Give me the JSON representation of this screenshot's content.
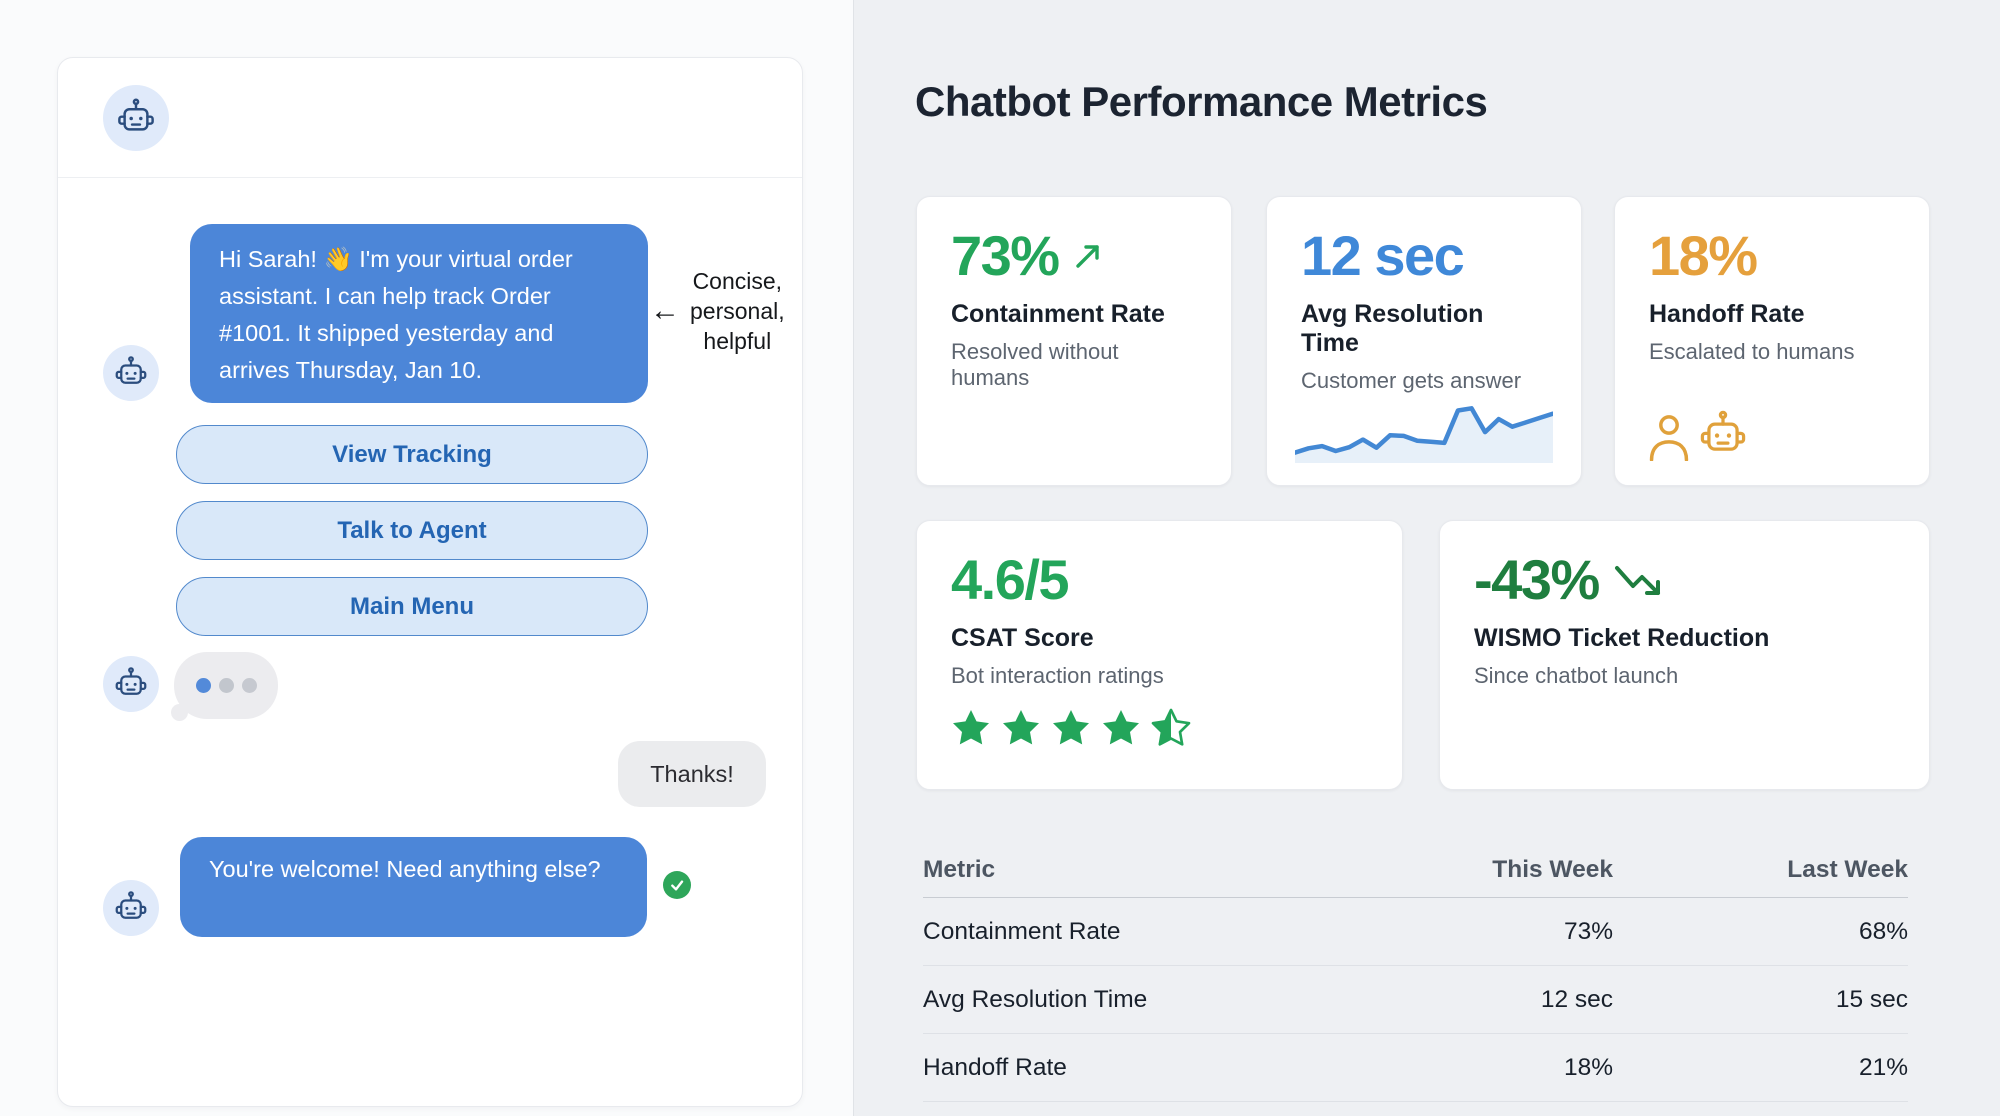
{
  "chat": {
    "messages": {
      "bot_intro": "Hi Sarah! 👋 I'm your virtual order assistant. I can help track Order #1001. It shipped yesterday and arrives Thursday, Jan 10.",
      "user_thanks": "Thanks!",
      "bot_closing": "You're welcome! Need anything else?"
    },
    "quick_replies": [
      "View Tracking",
      "Talk to Agent",
      "Main Menu"
    ],
    "annotation": {
      "arrow": "←",
      "line1": "Concise,",
      "line2": "personal,",
      "line3": "helpful"
    },
    "icons": {
      "bot_avatar": "robot-icon",
      "delivered_check": "check-icon",
      "typing_indicator": "three-dots"
    },
    "colors": {
      "bot_bubble": "#4c86d8",
      "user_bubble": "#ebecee",
      "quick_reply_bg": "#d9e8f9",
      "quick_reply_text": "#2465b3",
      "delivered_check": "#2ea65a"
    }
  },
  "dashboard": {
    "title": "Chatbot Performance Metrics",
    "cards": [
      {
        "value": "73%",
        "trend": "up",
        "label": "Containment Rate",
        "sub": "Resolved without humans",
        "accent": "#23a55a"
      },
      {
        "value": "12 sec",
        "label": "Avg Resolution Time",
        "sub": "Customer gets answer",
        "accent": "#3f88d8",
        "sparkline": [
          1.0,
          1.8,
          2.2,
          1.3,
          2.0,
          3.4,
          1.9,
          4.2,
          4.1,
          3.2,
          3.0,
          2.8,
          8.8,
          9.2,
          4.8,
          7.2,
          5.8,
          6.6,
          7.4,
          8.2
        ]
      },
      {
        "value": "18%",
        "label": "Handoff Rate",
        "sub": "Escalated to humans",
        "accent": "#e5a03c",
        "icons": [
          "person-icon",
          "robot-icon"
        ]
      },
      {
        "value": "4.6/5",
        "label": "CSAT Score",
        "sub": "Bot interaction ratings",
        "accent": "#23a55a",
        "stars": 4.5
      },
      {
        "value": "-43%",
        "trend": "down",
        "label": "WISMO Ticket Reduction",
        "sub": "Since chatbot launch",
        "accent": "#1f7e3f"
      }
    ],
    "table": {
      "headers": [
        "Metric",
        "This Week",
        "Last Week"
      ],
      "rows": [
        {
          "metric": "Containment Rate",
          "this_week": "73%",
          "last_week": "68%"
        },
        {
          "metric": "Avg Resolution Time",
          "this_week": "12 sec",
          "last_week": "15 sec"
        },
        {
          "metric": "Handoff Rate",
          "this_week": "18%",
          "last_week": "21%"
        }
      ]
    }
  },
  "chart_data": {
    "type": "line",
    "title": "Avg Resolution Time sparkline",
    "x": [
      1,
      2,
      3,
      4,
      5,
      6,
      7,
      8,
      9,
      10,
      11,
      12,
      13,
      14,
      15,
      16,
      17,
      18,
      19,
      20
    ],
    "values": [
      1.0,
      1.8,
      2.2,
      1.3,
      2.0,
      3.4,
      1.9,
      4.2,
      4.1,
      3.2,
      3.0,
      2.8,
      8.8,
      9.2,
      4.8,
      7.2,
      5.8,
      6.6,
      7.4,
      8.2
    ],
    "ylim": [
      0,
      10
    ],
    "grid": false,
    "legend": false
  }
}
